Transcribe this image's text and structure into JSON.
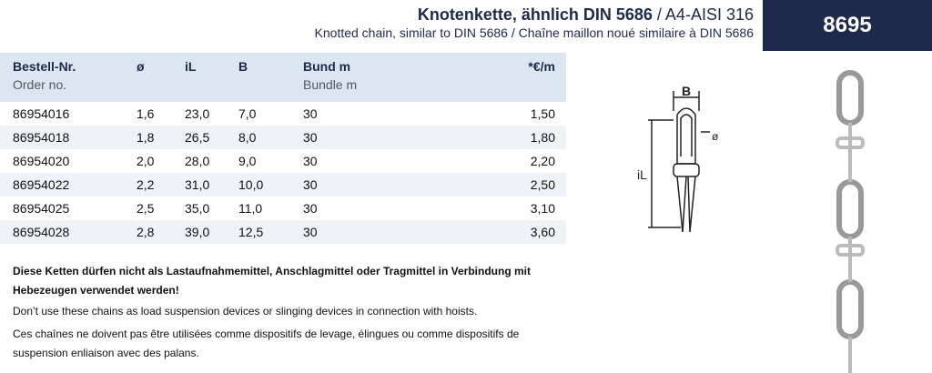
{
  "header": {
    "title": "Knotenkette, ähnlich DIN 5686",
    "material": "/ A4-AISI 316",
    "subtitle": "Knotted chain, similar to DIN 5686 / Chaîne maillon noué similaire à DIN 5686",
    "number": "8695"
  },
  "table": {
    "columns": [
      {
        "de": "Bestell-Nr.",
        "en": "Order no."
      },
      {
        "de": "ø"
      },
      {
        "de": "iL"
      },
      {
        "de": "B"
      },
      {
        "de": "Bund m",
        "en": "Bundle m"
      },
      {
        "de": "*€/m"
      }
    ],
    "rows": [
      [
        "86954016",
        "1,6",
        "23,0",
        "7,0",
        "30",
        "1,50"
      ],
      [
        "86954018",
        "1,8",
        "26,5",
        "8,0",
        "30",
        "1,80"
      ],
      [
        "86954020",
        "2,0",
        "28,0",
        "9,0",
        "30",
        "2,20"
      ],
      [
        "86954022",
        "2,2",
        "31,0",
        "10,0",
        "30",
        "2,50"
      ],
      [
        "86954025",
        "2,5",
        "35,0",
        "11,0",
        "30",
        "3,10"
      ],
      [
        "86954028",
        "2,8",
        "39,0",
        "12,5",
        "30",
        "3,60"
      ]
    ]
  },
  "notes": {
    "de": "Diese Ketten dürfen nicht als Lastaufnahmemittel, Anschlagmittel oder Tragmittel in Verbindung mit Hebezeugen verwendet werden!",
    "en": "Don’t use these chains as load suspension devices or slinging devices in connection with hoists.",
    "fr": "Ces chaînes ne doivent pas être utilisées comme dispositifs de levage, élingues ou comme dispositifs de suspension enliaison avec des palans."
  },
  "diagram": {
    "width_label": "B",
    "diameter_label": "ø",
    "length_label": "iL"
  }
}
